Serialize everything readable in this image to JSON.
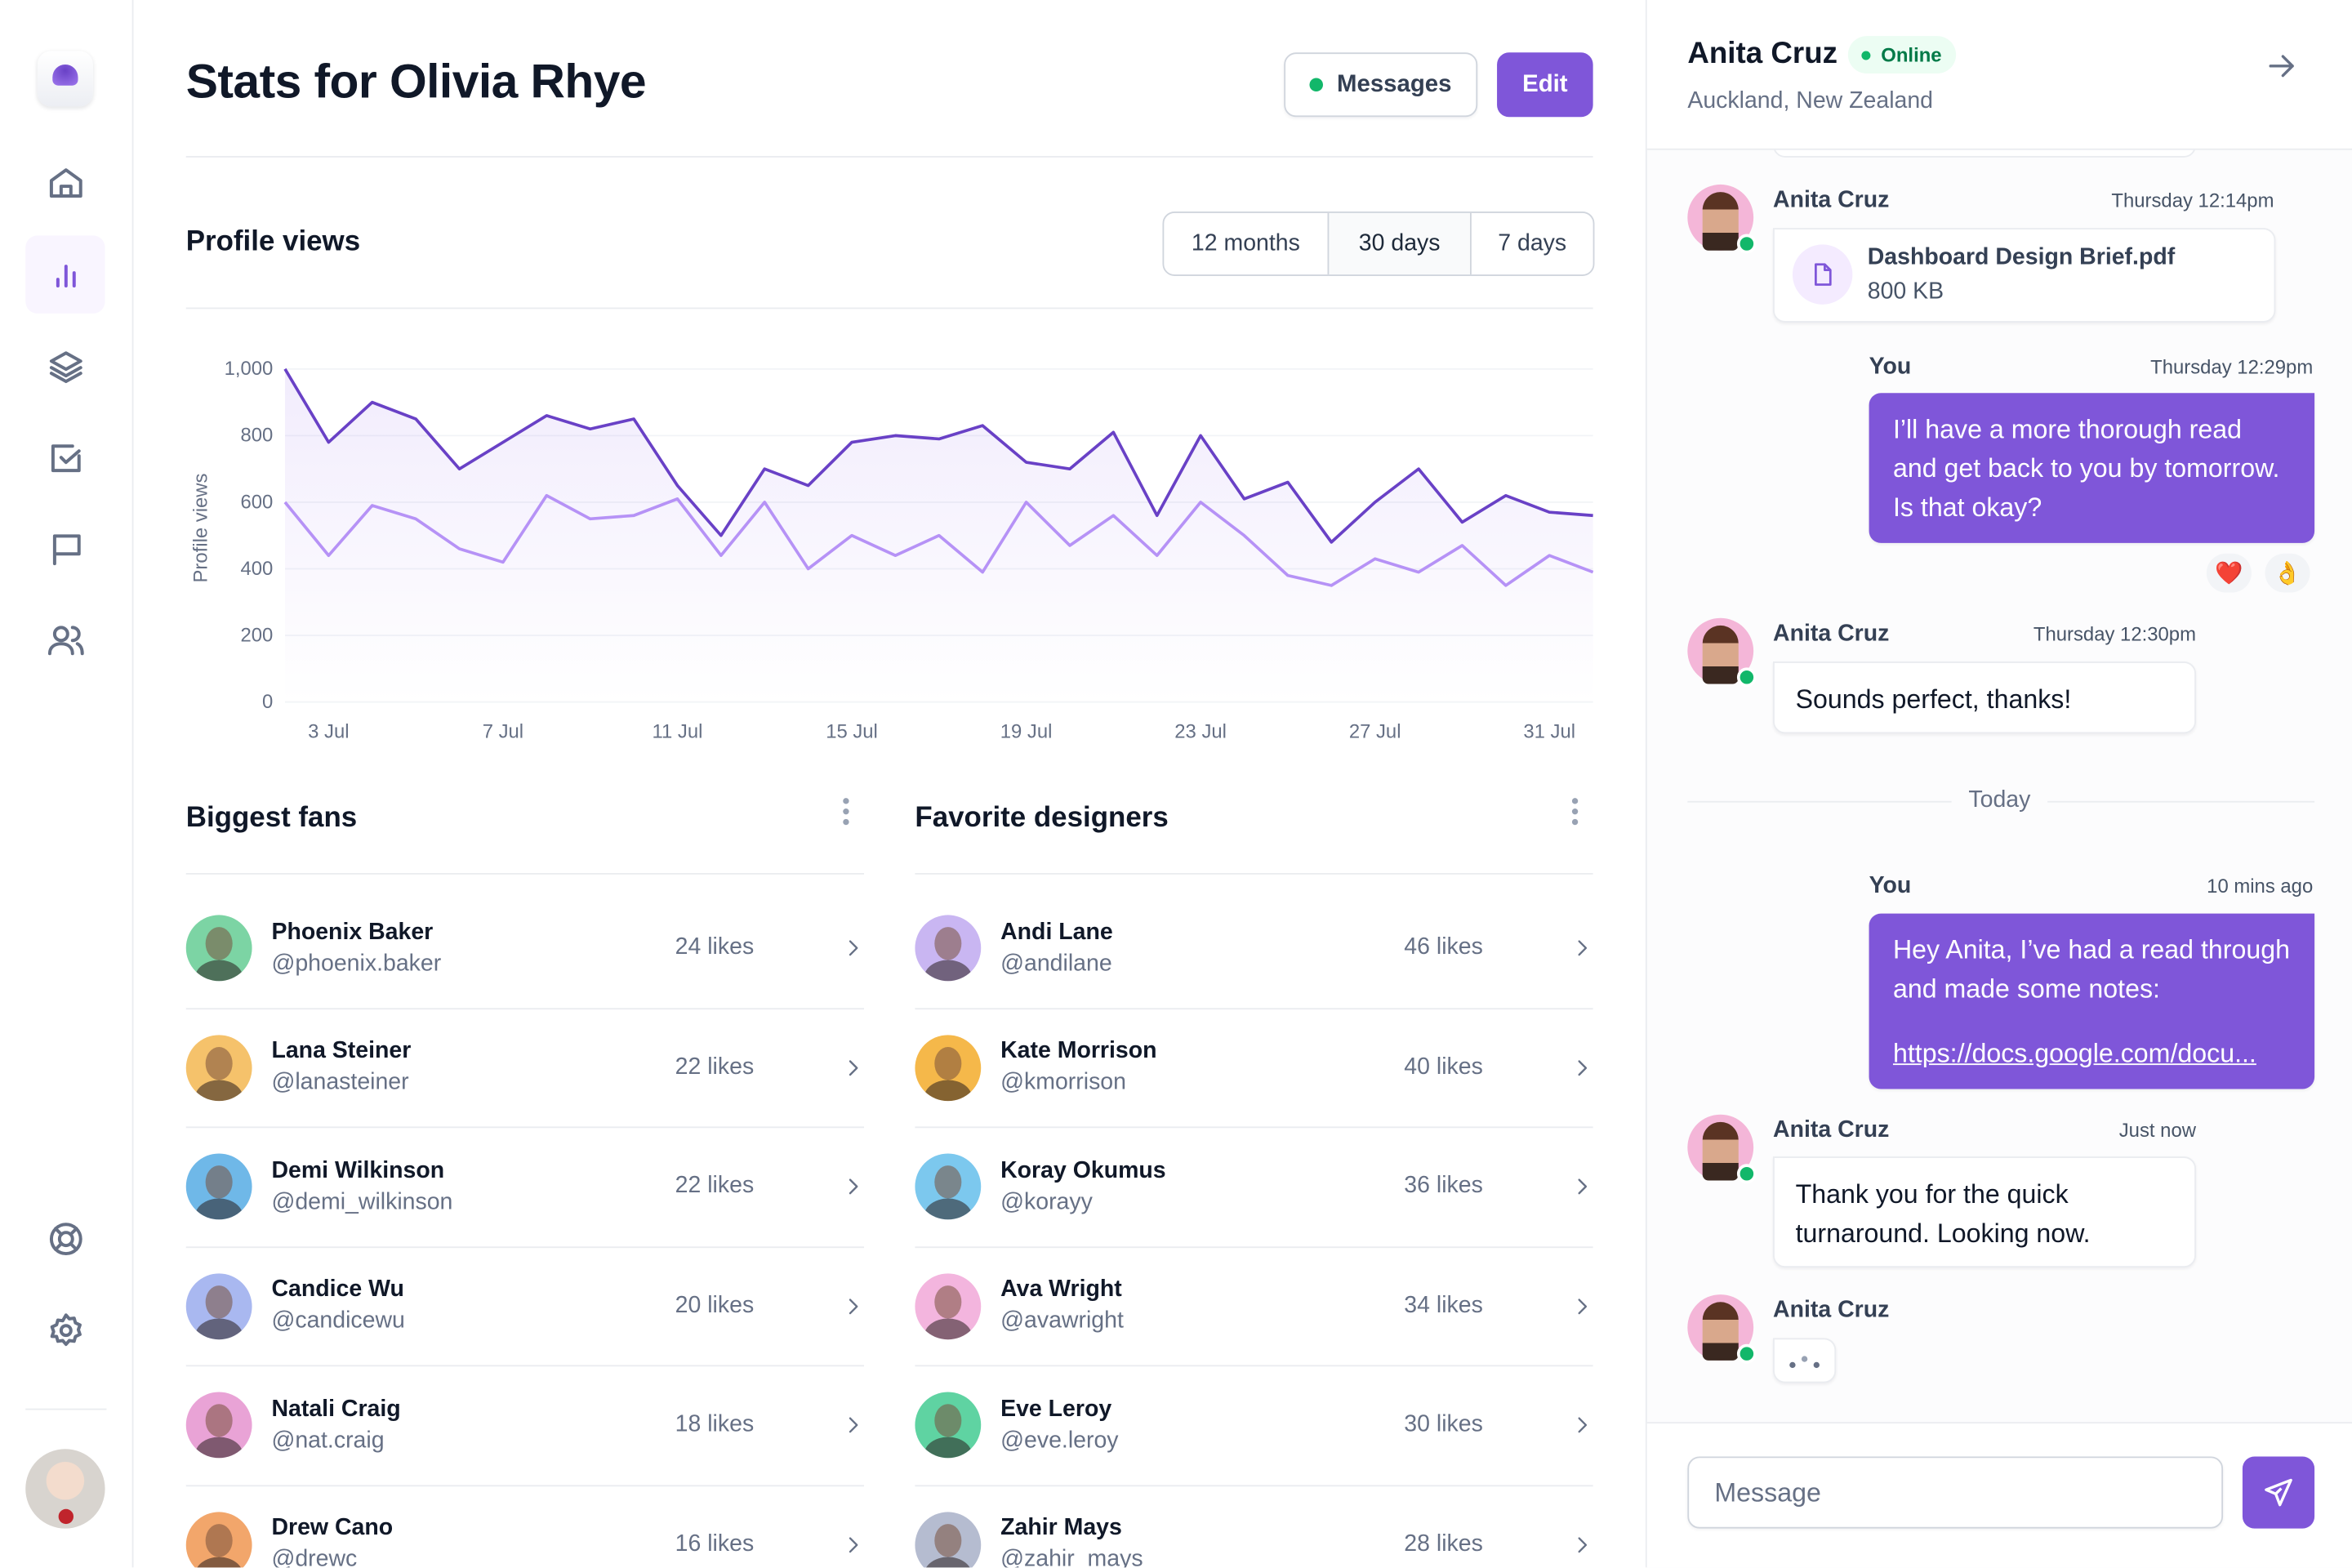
{
  "sidebar": {
    "items": [
      {
        "icon": "home-icon"
      },
      {
        "icon": "bar-chart-icon",
        "active": true
      },
      {
        "icon": "layers-icon"
      },
      {
        "icon": "check-square-icon"
      },
      {
        "icon": "flag-icon"
      },
      {
        "icon": "users-icon"
      }
    ],
    "bottom": [
      {
        "icon": "life-buoy-icon"
      },
      {
        "icon": "settings-icon"
      }
    ]
  },
  "header": {
    "title": "Stats for Olivia Rhye",
    "messages_label": "Messages",
    "edit_label": "Edit"
  },
  "profile_views": {
    "title": "Profile views",
    "ranges": [
      "12 months",
      "30 days",
      "7 days"
    ],
    "selected_range": "30 days"
  },
  "chart_data": {
    "type": "line",
    "ylabel": "Profile views",
    "xlabel": "",
    "ylim": [
      0,
      1000
    ],
    "yticks": [
      "0",
      "200",
      "400",
      "600",
      "800",
      "1,000"
    ],
    "xticks": [
      "3 Jul",
      "7 Jul",
      "11 Jul",
      "15 Jul",
      "19 Jul",
      "23 Jul",
      "27 Jul",
      "31 Jul"
    ],
    "xlim": [
      "2 Jul",
      "1 Aug"
    ],
    "grid": true,
    "x": [
      "2 Jul",
      "3 Jul",
      "4 Jul",
      "5 Jul",
      "6 Jul",
      "7 Jul",
      "8 Jul",
      "9 Jul",
      "10 Jul",
      "11 Jul",
      "12 Jul",
      "13 Jul",
      "14 Jul",
      "15 Jul",
      "16 Jul",
      "17 Jul",
      "18 Jul",
      "19 Jul",
      "20 Jul",
      "21 Jul",
      "22 Jul",
      "23 Jul",
      "24 Jul",
      "25 Jul",
      "26 Jul",
      "27 Jul",
      "28 Jul",
      "29 Jul",
      "30 Jul",
      "31 Jul",
      "1 Aug"
    ],
    "series": [
      {
        "color": "#6941C6",
        "values": [
          1000,
          780,
          900,
          850,
          700,
          780,
          860,
          820,
          850,
          650,
          500,
          700,
          650,
          780,
          800,
          790,
          830,
          720,
          700,
          810,
          560,
          800,
          610,
          660,
          480,
          600,
          700,
          540,
          620,
          570,
          560
        ]
      },
      {
        "color": "#B692F6",
        "values": [
          600,
          440,
          590,
          550,
          460,
          420,
          620,
          550,
          560,
          610,
          440,
          600,
          400,
          500,
          440,
          500,
          390,
          600,
          470,
          560,
          440,
          600,
          500,
          380,
          350,
          430,
          390,
          470,
          350,
          440,
          390
        ]
      }
    ]
  },
  "biggest_fans": {
    "title": "Biggest fans",
    "rows": [
      {
        "name": "Phoenix Baker",
        "handle": "@phoenix.baker",
        "likes": "24 likes",
        "color": "#7CD4A4"
      },
      {
        "name": "Lana Steiner",
        "handle": "@lanasteiner",
        "likes": "22 likes",
        "color": "#F5C26B"
      },
      {
        "name": "Demi Wilkinson",
        "handle": "@demi_wilkinson",
        "likes": "22 likes",
        "color": "#6FB8E8"
      },
      {
        "name": "Candice Wu",
        "handle": "@candicewu",
        "likes": "20 likes",
        "color": "#A9B8F0"
      },
      {
        "name": "Natali Craig",
        "handle": "@nat.craig",
        "likes": "18 likes",
        "color": "#E9A3D6"
      },
      {
        "name": "Drew Cano",
        "handle": "@drewc",
        "likes": "16 likes",
        "color": "#F2A66B"
      }
    ]
  },
  "favorite_designers": {
    "title": "Favorite designers",
    "rows": [
      {
        "name": "Andi Lane",
        "handle": "@andilane",
        "likes": "46 likes",
        "color": "#C9B6F2"
      },
      {
        "name": "Kate Morrison",
        "handle": "@kmorrison",
        "likes": "40 likes",
        "color": "#F5B84A"
      },
      {
        "name": "Koray Okumus",
        "handle": "@korayy",
        "likes": "36 likes",
        "color": "#7CC8EE"
      },
      {
        "name": "Ava Wright",
        "handle": "@avawright",
        "likes": "34 likes",
        "color": "#F3B5DE"
      },
      {
        "name": "Eve Leroy",
        "handle": "@eve.leroy",
        "likes": "30 likes",
        "color": "#5FD3A2"
      },
      {
        "name": "Zahir Mays",
        "handle": "@zahir_mays",
        "likes": "28 likes",
        "color": "#B5BCD0"
      }
    ]
  },
  "chat": {
    "contact_name": "Anita Cruz",
    "status": "Online",
    "location": "Auckland, New Zealand",
    "messages": [
      {
        "sender": "Anita Cruz",
        "time": "Thursday 12:14pm",
        "file_name": "Dashboard Design Brief.pdf",
        "file_size": "800 KB"
      },
      {
        "sender": "You",
        "time": "Thursday 12:29pm",
        "text": "I’ll have a more thorough read and get back to you by tomorrow. Is that okay?",
        "reactions": [
          "❤️",
          "👌"
        ]
      },
      {
        "sender": "Anita Cruz",
        "time": "Thursday 12:30pm",
        "text": "Sounds perfect, thanks!"
      },
      {
        "divider": "Today"
      },
      {
        "sender": "You",
        "time": "10 mins ago",
        "text": "Hey Anita, I’ve had a read through and made some notes:",
        "link": "https://docs.google.com/docu..."
      },
      {
        "sender": "Anita Cruz",
        "time": "Just now",
        "text": "Thank you for the quick turnaround. Looking now."
      },
      {
        "sender": "Anita Cruz",
        "typing": true
      }
    ],
    "input_placeholder": "Message"
  }
}
